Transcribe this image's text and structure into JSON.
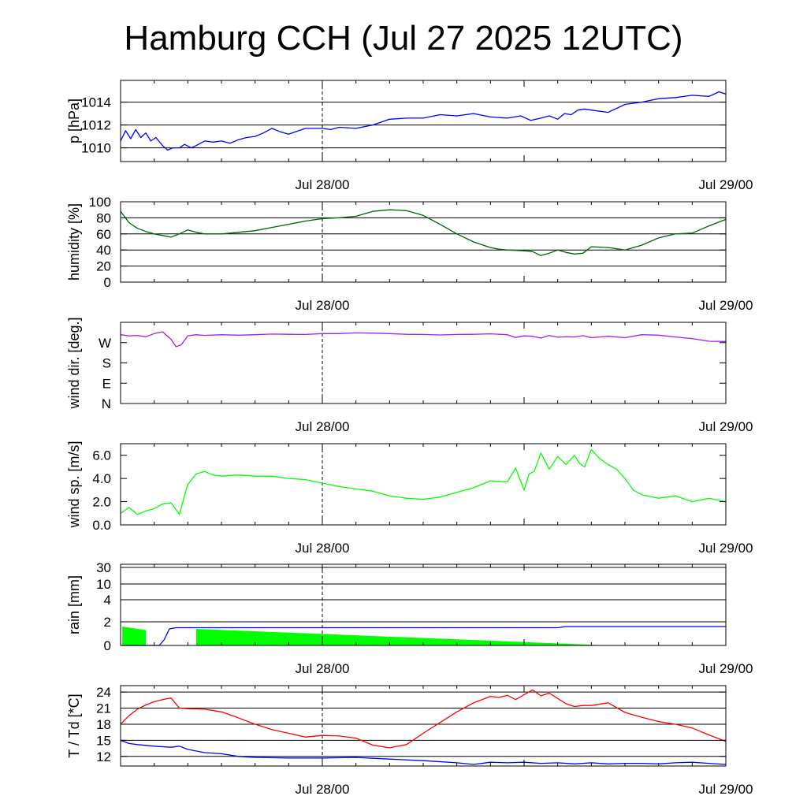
{
  "title": "Hamburg CCH (Jul 27 2025 12UTC)",
  "colors": {
    "pressure": "#0000ff",
    "humidity": "#006400",
    "wind_dir": "#a020f0",
    "wind_speed": "#00ff00",
    "rain_fill": "#00ff00",
    "rain_total": "#0000ff",
    "temperature": "#ff0000",
    "dewpoint": "#0000ff",
    "grid": "#000000",
    "midnight_marker": "#000000"
  },
  "chart_data": [
    {
      "id": "pressure",
      "type": "line",
      "ylabel": "p [hPa]",
      "x_range_hours": [
        0,
        36
      ],
      "ylim": [
        1008.8,
        1015.9
      ],
      "yticks": [
        1010,
        1012,
        1014
      ],
      "ytick_labels": [
        "1010",
        "1012",
        "1014"
      ],
      "grid": true,
      "xtick_labels": [
        {
          "hour": 12,
          "label": "Jul 28/00"
        },
        {
          "hour": 36,
          "label": "Jul 29/00"
        }
      ],
      "series": [
        {
          "color_key": "pressure",
          "x": [
            0,
            0.3,
            0.6,
            0.9,
            1.2,
            1.5,
            1.8,
            2.1,
            2.5,
            2.8,
            3.1,
            3.5,
            3.8,
            4.2,
            4.5,
            5,
            5.5,
            6,
            6.5,
            7,
            7.5,
            8,
            8.5,
            9,
            9.5,
            10,
            11,
            12,
            12.5,
            13,
            14,
            15,
            16,
            17,
            18,
            19,
            20,
            21,
            22,
            23,
            23.8,
            24.4,
            25,
            25.5,
            26,
            26.4,
            26.8,
            27.2,
            27.6,
            28,
            29,
            30,
            31,
            32,
            33,
            34,
            35,
            35.6,
            36
          ],
          "values": [
            1010.6,
            1011.5,
            1010.8,
            1011.6,
            1010.9,
            1011.3,
            1010.6,
            1010.9,
            1010.2,
            1009.8,
            1010.0,
            1010.0,
            1010.3,
            1010.0,
            1010.2,
            1010.6,
            1010.5,
            1010.6,
            1010.4,
            1010.7,
            1010.9,
            1011.0,
            1011.3,
            1011.7,
            1011.4,
            1011.2,
            1011.7,
            1011.7,
            1011.6,
            1011.8,
            1011.7,
            1012.0,
            1012.5,
            1012.6,
            1012.6,
            1012.9,
            1012.8,
            1013.0,
            1012.7,
            1012.6,
            1012.8,
            1012.4,
            1012.6,
            1012.8,
            1012.5,
            1013.0,
            1012.9,
            1013.3,
            1013.4,
            1013.3,
            1013.1,
            1013.8,
            1014.0,
            1014.3,
            1014.4,
            1014.6,
            1014.5,
            1014.9,
            1014.7
          ]
        }
      ]
    },
    {
      "id": "humidity",
      "type": "line",
      "ylabel": "humidity [%]",
      "x_range_hours": [
        0,
        36
      ],
      "ylim": [
        0,
        100
      ],
      "yticks": [
        0,
        20,
        40,
        60,
        80,
        100
      ],
      "ytick_labels": [
        "0",
        "20",
        "40",
        "60",
        "80",
        "100"
      ],
      "grid": true,
      "xtick_labels": [
        {
          "hour": 12,
          "label": "Jul 28/00"
        },
        {
          "hour": 36,
          "label": "Jul 29/00"
        }
      ],
      "series": [
        {
          "color_key": "humidity",
          "x": [
            0,
            0.5,
            1,
            1.5,
            2,
            2.5,
            3,
            3.5,
            4,
            4.5,
            5,
            5.5,
            6,
            7,
            8,
            9,
            10,
            11,
            12,
            13,
            14,
            15,
            16,
            17,
            18,
            19,
            20,
            21,
            22,
            22.5,
            23,
            24,
            24.5,
            25,
            25.5,
            26,
            26.5,
            27,
            27.5,
            28,
            29,
            30,
            31,
            32,
            33,
            34,
            35,
            36
          ],
          "values": [
            88,
            74,
            67,
            63,
            60,
            58,
            56,
            60,
            65,
            62,
            60,
            60,
            60,
            62,
            64,
            68,
            72,
            76,
            79,
            80,
            82,
            88,
            90,
            89,
            83,
            72,
            60,
            50,
            43,
            41,
            40,
            39,
            38,
            33,
            36,
            40,
            37,
            35,
            36,
            44,
            43,
            40,
            46,
            55,
            60,
            61,
            70,
            78
          ]
        }
      ]
    },
    {
      "id": "wind_direction",
      "type": "line",
      "ylabel": "wind dir. [deg.]",
      "x_range_hours": [
        0,
        36
      ],
      "ylim": [
        0,
        360
      ],
      "yticks": [
        0,
        90,
        180,
        270
      ],
      "ytick_labels": [
        "N",
        "E",
        "S",
        "W"
      ],
      "grid": false,
      "xtick_labels": [
        {
          "hour": 12,
          "label": "Jul 28/00"
        },
        {
          "hour": 36,
          "label": "Jul 29/00"
        }
      ],
      "series": [
        {
          "color_key": "wind_dir",
          "x": [
            0,
            0.5,
            1,
            1.5,
            2,
            2.5,
            3,
            3.3,
            3.6,
            4,
            4.5,
            5,
            6,
            7,
            8,
            9,
            10,
            11,
            12,
            13,
            14,
            15,
            16,
            17,
            18,
            19,
            20,
            21,
            22,
            23,
            23.5,
            24,
            24.5,
            25,
            25.5,
            26,
            26.5,
            27,
            27.5,
            28,
            29,
            30,
            31,
            32,
            33,
            34,
            35,
            36
          ],
          "values": [
            305,
            300,
            302,
            296,
            310,
            318,
            285,
            252,
            260,
            300,
            305,
            302,
            305,
            303,
            305,
            308,
            307,
            306,
            310,
            310,
            313,
            312,
            310,
            307,
            306,
            304,
            306,
            307,
            309,
            305,
            293,
            300,
            298,
            290,
            302,
            294,
            296,
            295,
            301,
            292,
            298,
            292,
            305,
            303,
            295,
            288,
            276,
            275
          ]
        }
      ]
    },
    {
      "id": "wind_speed",
      "type": "line",
      "ylabel": "wind sp. [m/s]",
      "x_range_hours": [
        0,
        36
      ],
      "ylim": [
        0,
        7
      ],
      "yticks": [
        0,
        2,
        4,
        6
      ],
      "ytick_labels": [
        "0.0",
        "2.0",
        "4.0",
        "6.0"
      ],
      "grid": false,
      "xtick_labels": [
        {
          "hour": 12,
          "label": "Jul 28/00"
        },
        {
          "hour": 36,
          "label": "Jul 29/00"
        }
      ],
      "series": [
        {
          "color_key": "wind_speed",
          "x": [
            0,
            0.5,
            1,
            1.5,
            2,
            2.5,
            3,
            3.5,
            3.8,
            4,
            4.5,
            5,
            5.5,
            6,
            7,
            8,
            9,
            10,
            11,
            12,
            13,
            14,
            15,
            16,
            17,
            18,
            19,
            20,
            21,
            22,
            23,
            23.5,
            24,
            24.3,
            24.6,
            25,
            25.5,
            26,
            26.5,
            27,
            27.3,
            27.6,
            28,
            28.5,
            29,
            29.5,
            30,
            30.5,
            31,
            32,
            33,
            34,
            35,
            36
          ],
          "values": [
            1.0,
            1.5,
            0.9,
            1.2,
            1.4,
            1.8,
            1.9,
            0.9,
            2.5,
            3.5,
            4.4,
            4.6,
            4.3,
            4.2,
            4.3,
            4.2,
            4.2,
            4.0,
            3.9,
            3.6,
            3.3,
            3.1,
            2.9,
            2.5,
            2.3,
            2.2,
            2.4,
            2.8,
            3.2,
            3.8,
            3.7,
            4.9,
            3.0,
            4.4,
            4.6,
            6.2,
            4.8,
            5.9,
            5.2,
            6.0,
            5.3,
            5.0,
            6.5,
            5.7,
            5.2,
            4.8,
            4.0,
            3.0,
            2.6,
            2.3,
            2.5,
            2.0,
            2.3,
            2.0
          ]
        }
      ]
    },
    {
      "id": "rain",
      "type": "area",
      "ylabel": "rain [mm]",
      "x_range_hours": [
        0,
        36
      ],
      "ylim_note": "nonlinear axis",
      "ytick_values": [
        0,
        2,
        4,
        10,
        30
      ],
      "ytick_labels": [
        "0",
        "2",
        "4",
        "10",
        "30"
      ],
      "grid": true,
      "xtick_labels": [
        {
          "hour": 12,
          "label": "Jul 28/00"
        },
        {
          "hour": 36,
          "label": "Jul 29/00"
        }
      ],
      "intensity_blocks": [
        {
          "x0": 0.1,
          "x1": 1.5,
          "top_start": 1.6,
          "top_end": 1.3
        },
        {
          "x0": 4.5,
          "x1": 29,
          "top_start": 1.4,
          "top_end": 0
        }
      ],
      "accumulated": {
        "color_key": "rain_total",
        "x": [
          0,
          1.8,
          2.3,
          2.6,
          2.9,
          3.3,
          5,
          10,
          20,
          26,
          26.5,
          30,
          36
        ],
        "values": [
          0,
          0,
          0,
          0.5,
          1.4,
          1.5,
          1.5,
          1.5,
          1.5,
          1.5,
          1.6,
          1.6,
          1.6
        ]
      }
    },
    {
      "id": "temperature",
      "type": "line",
      "ylabel": "T / Td [*C]",
      "x_range_hours": [
        0,
        36
      ],
      "ylim": [
        10.2,
        25.2
      ],
      "yticks": [
        12,
        15,
        18,
        21,
        24
      ],
      "ytick_labels": [
        "12",
        "15",
        "18",
        "21",
        "24"
      ],
      "grid": true,
      "xtick_labels": [
        {
          "hour": 12,
          "label": "Jul 28/00"
        },
        {
          "hour": 36,
          "label": "Jul 29/00"
        }
      ],
      "series": [
        {
          "name": "T",
          "color_key": "temperature",
          "x": [
            0,
            0.5,
            1,
            1.5,
            2,
            2.5,
            3,
            3.5,
            4,
            5,
            6,
            7,
            8,
            9,
            10,
            11,
            12,
            13,
            14,
            15,
            16,
            17,
            18,
            19,
            20,
            21,
            22,
            22.5,
            23,
            23.5,
            24,
            24.5,
            25,
            25.5,
            26,
            26.5,
            27,
            27.5,
            28,
            29,
            30,
            31,
            32,
            33,
            34,
            35,
            36
          ],
          "values": [
            18,
            19.6,
            20.8,
            21.6,
            22.2,
            22.6,
            22.9,
            21,
            20.9,
            20.8,
            20.3,
            19.2,
            18,
            17,
            16.3,
            15.6,
            15.9,
            15.8,
            15.4,
            14.1,
            13.6,
            14.2,
            16.3,
            18.3,
            20.3,
            22,
            23.2,
            23,
            23.4,
            22.6,
            23.5,
            24.4,
            23.3,
            23.8,
            22.8,
            21.8,
            21.3,
            21.5,
            21.5,
            22,
            20.2,
            19.3,
            18.5,
            18.0,
            17.3,
            16,
            14.8
          ]
        },
        {
          "name": "Td",
          "color_key": "dewpoint",
          "x": [
            0,
            0.5,
            1,
            2,
            3,
            3.5,
            4,
            5,
            6,
            7,
            8,
            10,
            12,
            14,
            16,
            18,
            20,
            21,
            22,
            23,
            24,
            25,
            26,
            27,
            28,
            29,
            30,
            31,
            32,
            33,
            34,
            35,
            36
          ],
          "values": [
            15,
            14.4,
            14.2,
            13.9,
            13.7,
            13.9,
            13.3,
            12.7,
            12.5,
            12.0,
            11.8,
            11.7,
            11.7,
            11.8,
            11.5,
            11.2,
            10.8,
            10.5,
            10.9,
            10.8,
            10.9,
            10.7,
            10.8,
            10.6,
            10.8,
            10.6,
            10.7,
            10.7,
            10.6,
            10.8,
            10.9,
            10.7,
            10.5
          ]
        }
      ]
    }
  ]
}
